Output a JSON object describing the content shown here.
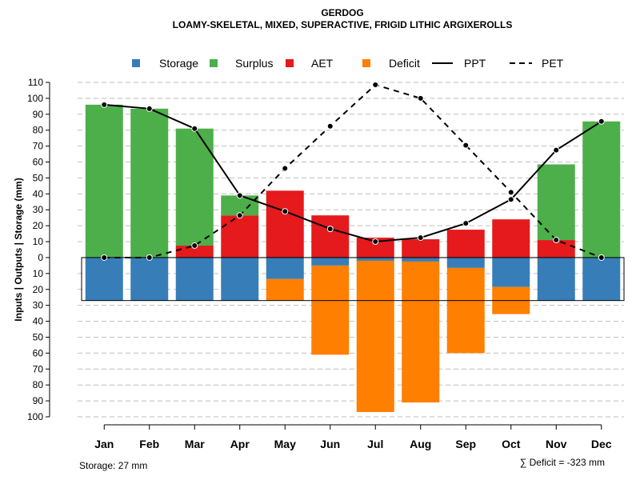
{
  "chart_data": {
    "type": "bar",
    "title": "GERDOG",
    "subtitle": "LOAMY-SKELETAL, MIXED, SUPERACTIVE, FRIGID LITHIC ARGIXEROLLS",
    "ylabel": "Inputs | Outputs | Storage    (mm)",
    "ylim": [
      -100,
      110
    ],
    "y_ticks": [
      110,
      100,
      90,
      80,
      70,
      60,
      50,
      40,
      30,
      20,
      10,
      0,
      -10,
      -20,
      -30,
      -40,
      -50,
      -60,
      -70,
      -80,
      -90,
      -100
    ],
    "y_tick_labels": [
      "110",
      "100",
      "90",
      "80",
      "70",
      "60",
      "50",
      "40",
      "30",
      "20",
      "10",
      "0",
      "10",
      "20",
      "30",
      "40",
      "50",
      "60",
      "70",
      "80",
      "90",
      "100"
    ],
    "categories": [
      "Jan",
      "Feb",
      "Mar",
      "Apr",
      "May",
      "Jun",
      "Jul",
      "Aug",
      "Sep",
      "Oct",
      "Nov",
      "Dec"
    ],
    "legend": [
      "Storage",
      "Surplus",
      "AET",
      "Deficit",
      "PPT",
      "PET"
    ],
    "colors": {
      "storage": "#377EB8",
      "surplus": "#4DAF4A",
      "aet": "#E41A1C",
      "deficit": "#FF7F00",
      "ppt": "#000000",
      "pet": "#000000",
      "grid": "#bfbfbf"
    },
    "series": [
      {
        "name": "Storage",
        "values": [
          27,
          27,
          27,
          27,
          13.5,
          5,
          2,
          2.5,
          6.5,
          18.5,
          27,
          27
        ]
      },
      {
        "name": "Surplus",
        "values": [
          96,
          93.5,
          73.5,
          12.5,
          0,
          0,
          0,
          0,
          0,
          0,
          47.5,
          85.5
        ]
      },
      {
        "name": "AET",
        "values": [
          0,
          0,
          7.5,
          26.5,
          42,
          26.5,
          12.5,
          11.5,
          17.5,
          24,
          11,
          0
        ]
      },
      {
        "name": "Deficit",
        "values": [
          0,
          0,
          0,
          0,
          13.5,
          56,
          95,
          88.5,
          53.5,
          17,
          0,
          0
        ]
      },
      {
        "name": "PPT",
        "values": [
          96,
          93.5,
          81,
          39,
          29,
          18,
          10,
          12.5,
          21.5,
          36.5,
          67.5,
          85.5
        ]
      },
      {
        "name": "PET",
        "values": [
          0,
          0,
          7.5,
          26.5,
          56,
          82.5,
          108.5,
          100,
          70.5,
          41,
          11,
          0
        ]
      }
    ],
    "storage_capacity": 27,
    "storage_text": "Storage: 27 mm",
    "deficit_sum_text": "∑ Deficit = -323 mm"
  }
}
